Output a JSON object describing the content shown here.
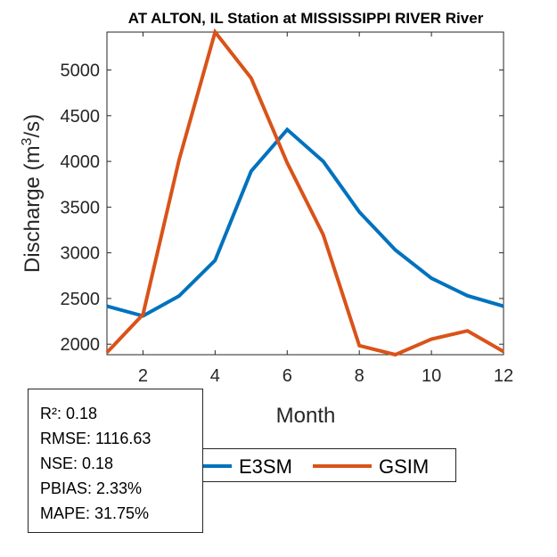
{
  "chart_data": {
    "type": "line",
    "title": "AT ALTON, IL  Station at  MISSISSIPPI RIVER  River",
    "xlabel": "Month",
    "ylabel": "Discharge (m³/s)",
    "ylabel_parts": {
      "pre": "Discharge (m",
      "sup": "3",
      "post": "/s)"
    },
    "x": [
      1,
      2,
      3,
      4,
      5,
      6,
      7,
      8,
      9,
      10,
      11,
      12
    ],
    "xlim": [
      1,
      12
    ],
    "ylim": [
      1885,
      5415
    ],
    "xticks": [
      "2",
      "4",
      "6",
      "8",
      "10",
      "12"
    ],
    "xtick_values": [
      2,
      4,
      6,
      8,
      10,
      12
    ],
    "yticks": [
      "2000",
      "2500",
      "3000",
      "3500",
      "4000",
      "4500",
      "5000"
    ],
    "ytick_values": [
      2000,
      2500,
      3000,
      3500,
      4000,
      4500,
      5000
    ],
    "grid": false,
    "legend_position": "bottom-outside",
    "series": [
      {
        "name": "E3SM",
        "color": "#0072BD",
        "values": [
          2416,
          2309,
          2527,
          2917,
          3893,
          4348,
          4000,
          3447,
          3031,
          2722,
          2530,
          2416
        ]
      },
      {
        "name": "GSIM",
        "color": "#D95319",
        "values": [
          1909,
          2325,
          4016,
          5415,
          4911,
          3984,
          3197,
          1984,
          1885,
          2055,
          2146,
          1919
        ]
      }
    ]
  },
  "stats": [
    "R²: 0.18",
    "RMSE: 1116.63",
    "NSE: 0.18",
    "PBIAS: 2.33%",
    "MAPE: 31.75%"
  ]
}
